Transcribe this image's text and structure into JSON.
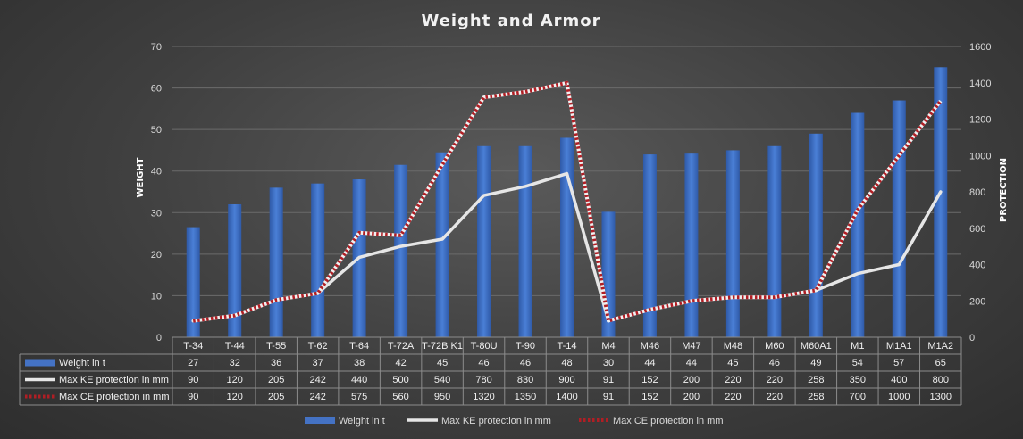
{
  "chart_data": {
    "type": "bar",
    "title": "Weight and Armor",
    "ylabel_left": "WEIGHT",
    "ylabel_right": "PROTECTION",
    "ylim_left": [
      0,
      70
    ],
    "yticks_left": [
      "0",
      "10",
      "20",
      "30",
      "40",
      "50",
      "60",
      "70"
    ],
    "ylim_right": [
      0,
      1600
    ],
    "yticks_right": [
      "0",
      "200",
      "400",
      "600",
      "800",
      "1000",
      "1200",
      "1400",
      "1600"
    ],
    "grid": true,
    "legend_position": "bottom",
    "categories": [
      "T-34",
      "T-44",
      "T-55",
      "T-62",
      "T-64",
      "T-72A",
      "T-72B K1",
      "T-80U",
      "T-90",
      "T-14",
      "M4",
      "M46",
      "M47",
      "M48",
      "M60",
      "M60A1",
      "M1",
      "M1A1",
      "M1A2"
    ],
    "series": [
      {
        "name": "Weight in t",
        "type": "bar",
        "axis": "left",
        "color": "#4472c4",
        "labels": [
          "27",
          "32",
          "36",
          "37",
          "38",
          "42",
          "45",
          "46",
          "46",
          "48",
          "30",
          "44",
          "44",
          "45",
          "46",
          "49",
          "54",
          "57",
          "65"
        ],
        "values": [
          26.5,
          32,
          36,
          37,
          38,
          41.5,
          44.5,
          46,
          46,
          48,
          30.2,
          44,
          44.2,
          45,
          46,
          49,
          54,
          57,
          65
        ]
      },
      {
        "name": "Max KE protection in mm",
        "type": "line",
        "axis": "right",
        "color": "#e6e6e6",
        "values": [
          90,
          120,
          205,
          242,
          440,
          500,
          540,
          780,
          830,
          900,
          91,
          152,
          200,
          220,
          220,
          258,
          350,
          400,
          800
        ]
      },
      {
        "name": "Max CE protection in mm",
        "type": "line",
        "axis": "right",
        "color": "#b11e24",
        "values": [
          90,
          120,
          205,
          242,
          575,
          560,
          950,
          1320,
          1350,
          1400,
          91,
          152,
          200,
          220,
          220,
          258,
          700,
          1000,
          1300
        ]
      }
    ]
  }
}
